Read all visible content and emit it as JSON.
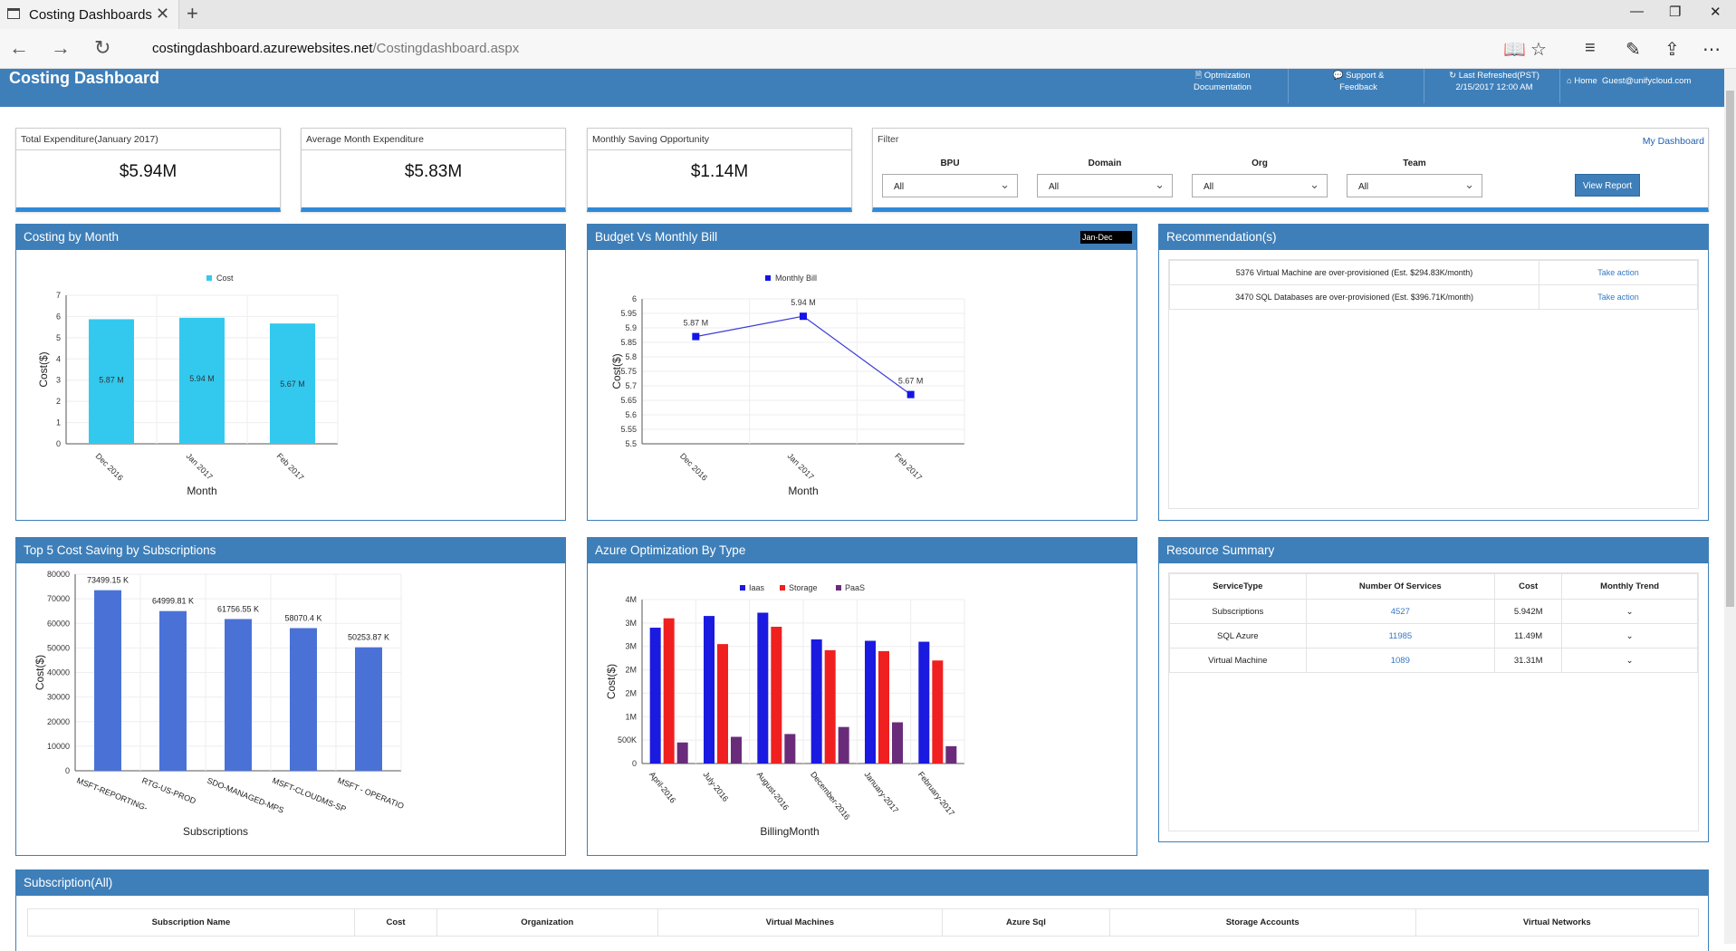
{
  "browser": {
    "tab_title": "Costing Dashboards",
    "url_host": "costingdashboard.azurewebsites.net",
    "url_path": "/Costingdashboard.aspx"
  },
  "header": {
    "title": "Costing Dashboard",
    "optimization_doc_1": "Optmization",
    "optimization_doc_2": "Documentation",
    "support_1": "Support &",
    "support_2": "Feedback",
    "last_refreshed_label": "Last Refreshed(PST)",
    "last_refreshed_value": "2/15/2017 12:00 AM",
    "home": "Home",
    "user": "Guest@unifycloud.com"
  },
  "stats": [
    {
      "label": "Total Expenditure(January 2017)",
      "value": "$5.94M"
    },
    {
      "label": "Average Month Expenditure",
      "value": "$5.83M"
    },
    {
      "label": "Monthly Saving Opportunity",
      "value": "$1.14M"
    }
  ],
  "filter": {
    "label": "Filter",
    "my_dashboard": "My Dashboard",
    "fields": [
      {
        "label": "BPU",
        "value": "All"
      },
      {
        "label": "Domain",
        "value": "All"
      },
      {
        "label": "Org",
        "value": "All"
      },
      {
        "label": "Team",
        "value": "All"
      }
    ],
    "view_report": "View Report"
  },
  "panels": {
    "costing_by_month": "Costing by Month",
    "budget_vs_bill": "Budget Vs Monthly Bill",
    "budget_range": "Jan-Dec",
    "recommendations": "Recommendation(s)",
    "top5": "Top 5 Cost Saving by Subscriptions",
    "azure_opt": "Azure Optimization By Type",
    "resource_summary": "Resource Summary",
    "subscription_all": "Subscription(All)"
  },
  "recommendations": [
    {
      "text": "5376 Virtual Machine are over-provisioned (Est. $294.83K/month)",
      "action": "Take action"
    },
    {
      "text": "3470 SQL Databases are over-provisioned (Est. $396.71K/month)",
      "action": "Take action"
    }
  ],
  "resource_summary": {
    "headers": [
      "ServiceType",
      "Number Of Services",
      "Cost",
      "Monthly Trend"
    ],
    "rows": [
      {
        "type": "Subscriptions",
        "count": "4527",
        "cost": "5.942M"
      },
      {
        "type": "SQL Azure",
        "count": "11985",
        "cost": "11.49M"
      },
      {
        "type": "Virtual Machine",
        "count": "1089",
        "cost": "31.31M"
      }
    ]
  },
  "subscription_table": {
    "headers": [
      "Subscription Name",
      "Cost",
      "Organization",
      "Virtual Machines",
      "Azure Sql",
      "Storage Accounts",
      "Virtual Networks"
    ]
  },
  "chart_data": [
    {
      "type": "bar",
      "title": "Costing by Month",
      "legend": [
        "Cost"
      ],
      "categories": [
        "Dec 2016",
        "Jan 2017",
        "Feb 2017"
      ],
      "values": [
        5.87,
        5.94,
        5.67
      ],
      "data_labels": [
        "5.87 M",
        "5.94 M",
        "5.67 M"
      ],
      "xlabel": "Month",
      "ylabel": "Cost($)",
      "ylim": [
        0,
        7
      ],
      "yticks": [
        "0",
        "1",
        "2",
        "3",
        "4",
        "5",
        "6",
        "7"
      ],
      "color": "#33c9ef"
    },
    {
      "type": "line",
      "title": "Budget Vs Monthly Bill",
      "legend": [
        "Monthly Bill"
      ],
      "categories": [
        "Dec 2016",
        "Jan 2017",
        "Feb 2017"
      ],
      "values": [
        5.87,
        5.94,
        5.67
      ],
      "data_labels": [
        "5.87 M",
        "5.94 M",
        "5.67 M"
      ],
      "xlabel": "Month",
      "ylabel": "Cost($)",
      "ylim": [
        5.5,
        6
      ],
      "yticks": [
        "5.5",
        "5.55",
        "5.6",
        "5.65",
        "5.7",
        "5.75",
        "5.8",
        "5.85",
        "5.9",
        "5.95",
        "6"
      ],
      "color": "#1414e6"
    },
    {
      "type": "bar",
      "title": "Top 5 Cost Saving by Subscriptions",
      "categories": [
        "MSFT-REPORTING-",
        "RTG-US-PROD",
        "SDO-MANAGED-MPS",
        "MSFT-CLOUDMS-SP",
        "MSFT - OPERATIO"
      ],
      "values": [
        73499.15,
        64999.81,
        61756.55,
        58070.4,
        50253.87
      ],
      "data_labels": [
        "73499.15 K",
        "64999.81 K",
        "61756.55 K",
        "58070.4 K",
        "50253.87 K"
      ],
      "xlabel": "Subscriptions",
      "ylabel": "Cost($)",
      "ylim": [
        0,
        80000
      ],
      "yticks": [
        "0",
        "10000",
        "20000",
        "30000",
        "40000",
        "50000",
        "60000",
        "70000",
        "80000"
      ],
      "color": "#4a72d6"
    },
    {
      "type": "bar",
      "title": "Azure Optimization By Type",
      "categories": [
        "April-2016",
        "July-2016",
        "August-2016",
        "December-2016",
        "January-2017",
        "February-2017"
      ],
      "series": [
        {
          "name": "Iaas",
          "color": "#1a1ae0",
          "values": [
            2.9,
            3.15,
            3.22,
            2.65,
            2.62,
            2.6
          ]
        },
        {
          "name": "Storage",
          "color": "#f02020",
          "values": [
            3.1,
            2.55,
            2.92,
            2.42,
            2.4,
            2.2
          ]
        },
        {
          "name": "PaaS",
          "color": "#6a2c7a",
          "values": [
            0.45,
            0.57,
            0.63,
            0.78,
            0.88,
            0.37
          ]
        }
      ],
      "xlabel": "BillingMonth",
      "ylabel": "Cost($)",
      "ylim": [
        0,
        3.5
      ],
      "yticks": [
        "0",
        "500K",
        "1M",
        "2M",
        "2M",
        "3M",
        "3M",
        "4M"
      ]
    }
  ]
}
